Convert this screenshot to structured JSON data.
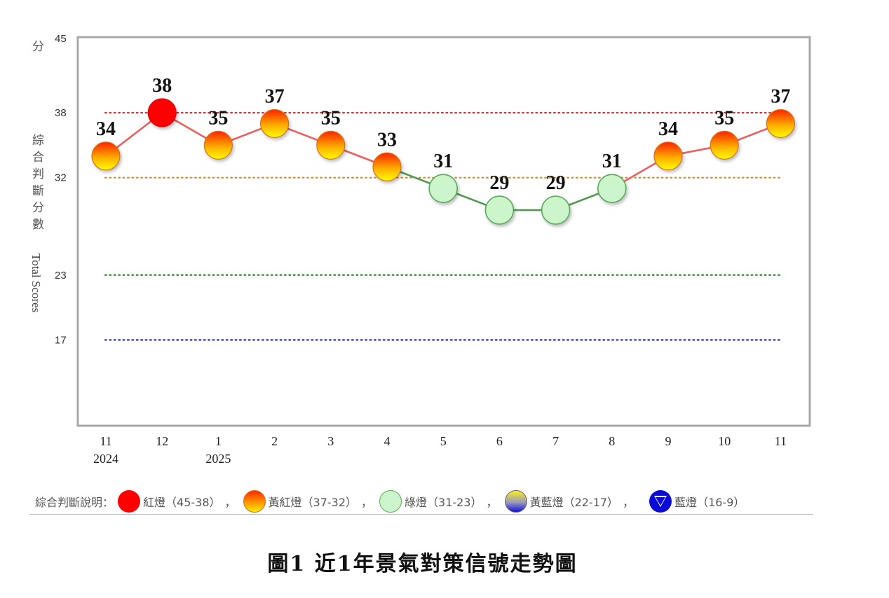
{
  "chart_data": {
    "type": "line",
    "title": "圖1 近1年景氣對策信號走勢圖",
    "ylabel_cn": "綜合判斷分數",
    "ylabel_en": "Total Scores",
    "y_unit": "分",
    "ylim": [
      9,
      45
    ],
    "yticks": [
      45,
      38,
      32,
      23,
      17
    ],
    "categories": [
      "11",
      "12",
      "1",
      "2",
      "3",
      "4",
      "5",
      "6",
      "7",
      "8",
      "9",
      "10",
      "11"
    ],
    "category_years": [
      "2024",
      "",
      "2025",
      "",
      "",
      "",
      "",
      "",
      "",
      "",
      "",
      "",
      ""
    ],
    "series": [
      {
        "name": "綜合判斷分數",
        "values": [
          34,
          38,
          35,
          37,
          35,
          33,
          31,
          29,
          29,
          31,
          34,
          35,
          37
        ],
        "signals": [
          "yellow-red",
          "red",
          "yellow-red",
          "yellow-red",
          "yellow-red",
          "yellow-red",
          "green",
          "green",
          "green",
          "green",
          "yellow-red",
          "yellow-red",
          "yellow-red"
        ]
      }
    ],
    "threshold_lines": [
      {
        "value": 38,
        "color": "#d0343a"
      },
      {
        "value": 32,
        "color": "#d98a2a"
      },
      {
        "value": 23,
        "color": "#2e8b2e"
      },
      {
        "value": 17,
        "color": "#1f1fa8"
      }
    ],
    "grid": false,
    "legend_position": "bottom"
  },
  "legend": {
    "title": "綜合判斷說明：",
    "items": [
      {
        "label": "紅燈（45-38）",
        "lamp": "red"
      },
      {
        "label": "黃紅燈（37-32）",
        "lamp": "yellow-red"
      },
      {
        "label": "綠燈（31-23）",
        "lamp": "green"
      },
      {
        "label": "黃藍燈（22-17）",
        "lamp": "yellow-blue"
      },
      {
        "label": "藍燈（16-9）",
        "lamp": "blue"
      }
    ],
    "separator": "，"
  },
  "colors": {
    "red_lamp": "#ff0000",
    "yellow_red_top": "#ff2a00",
    "yellow_red_bottom": "#ffee00",
    "green_lamp": "#ccf5cc",
    "green_line": "#4e9a4e",
    "red_line": "#e86060",
    "blue_lamp": "#0a0ad8"
  },
  "caption": "圖1  近1年景氣對策信號走勢圖"
}
